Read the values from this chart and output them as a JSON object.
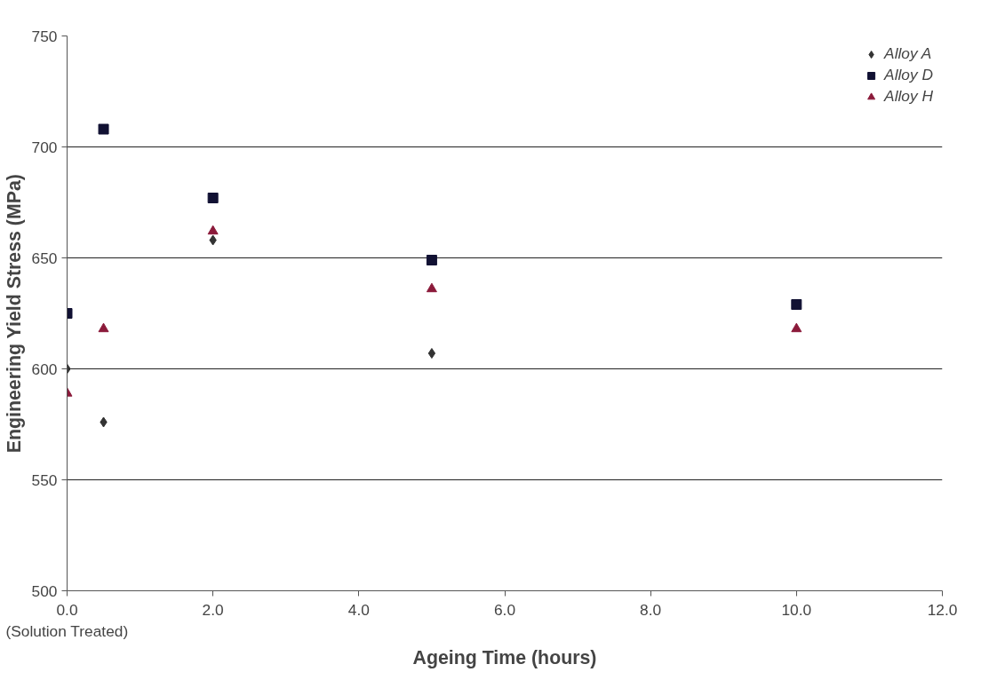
{
  "chart_data": {
    "type": "scatter",
    "xlabel": "Ageing Time (hours)",
    "ylabel": "Engineering Yield Stress (MPa)",
    "x": [
      0,
      0.5,
      2,
      5,
      10
    ],
    "series": [
      {
        "name": "Alloy A",
        "color": "#333333",
        "marker": "diamond",
        "values": [
          600,
          576,
          658,
          607,
          null
        ]
      },
      {
        "name": "Alloy D",
        "color": "#111133",
        "marker": "square",
        "values": [
          625,
          708,
          677,
          649,
          629
        ]
      },
      {
        "name": "Alloy H",
        "color": "#8b1a3a",
        "marker": "triangle",
        "values": [
          589,
          618,
          662,
          636,
          618
        ]
      }
    ],
    "xlim": [
      0,
      12
    ],
    "ylim": [
      500,
      750
    ],
    "xticks": [
      {
        "value": 0,
        "label": "0.0\n(Solution Treated)"
      },
      {
        "value": 2,
        "label": "2.0"
      },
      {
        "value": 4,
        "label": "4.0"
      },
      {
        "value": 6,
        "label": "6.0"
      },
      {
        "value": 8,
        "label": "8.0"
      },
      {
        "value": 10,
        "label": "10.0"
      },
      {
        "value": 12,
        "label": "12.0"
      }
    ],
    "yticks": [
      500,
      550,
      600,
      650,
      700,
      750
    ],
    "grid": "y",
    "legend": "top right"
  }
}
